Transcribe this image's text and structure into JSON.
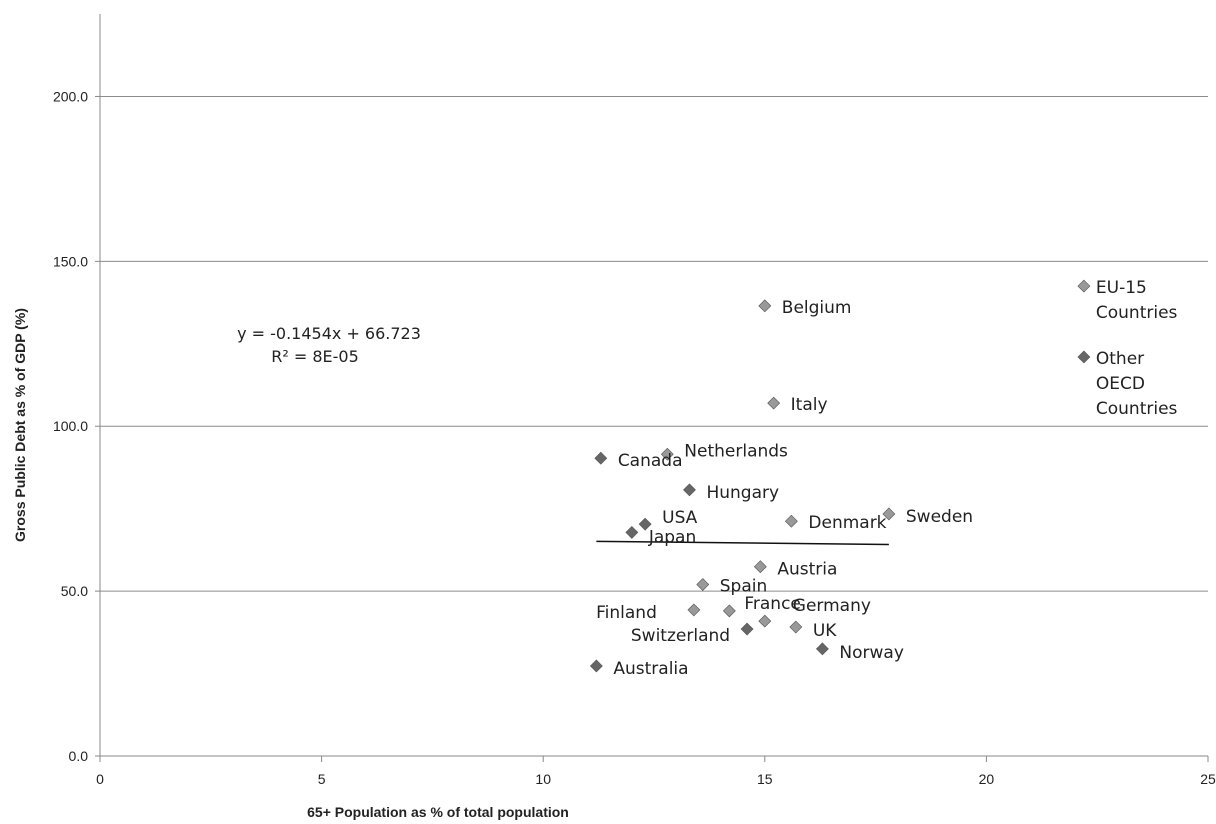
{
  "chart_data": {
    "type": "scatter",
    "title": "",
    "xlabel": "65+ Population as % of total population",
    "ylabel": "Gross Public Debt as % of GDP (%)",
    "xlim": [
      0,
      25
    ],
    "ylim": [
      0,
      225
    ],
    "x_ticks": [
      0,
      5,
      10,
      15,
      20,
      25
    ],
    "y_ticks": [
      0,
      50,
      100,
      150,
      200
    ],
    "x_tick_labels": [
      "0",
      "5",
      "10",
      "15",
      "20",
      "25"
    ],
    "y_tick_labels": [
      "0.0",
      "50.0",
      "100.0",
      "150.0",
      "200.0"
    ],
    "grid": "horizontal",
    "legend": "none",
    "marker_colors": {
      "eu15": "#999999",
      "other_oecd": "#666666"
    },
    "points": [
      {
        "label_lines": [
          "Belgium"
        ],
        "x": 15.0,
        "y": 136.5,
        "group": "eu15"
      },
      {
        "label_lines": [
          "Italy"
        ],
        "x": 15.2,
        "y": 107.0,
        "group": "eu15"
      },
      {
        "label_lines": [
          "Canada"
        ],
        "x": 11.3,
        "y": 90.3,
        "group": "other_oecd"
      },
      {
        "label_lines": [
          "Netherlands"
        ],
        "x": 12.8,
        "y": 91.5,
        "group": "eu15"
      },
      {
        "label_lines": [
          "Hungary"
        ],
        "x": 13.3,
        "y": 80.7,
        "group": "other_oecd"
      },
      {
        "label_lines": [
          "USA"
        ],
        "x": 12.3,
        "y": 70.3,
        "group": "other_oecd"
      },
      {
        "label_lines": [
          "Japan"
        ],
        "x": 12.0,
        "y": 67.8,
        "group": "other_oecd"
      },
      {
        "label_lines": [
          "Denmark"
        ],
        "x": 15.6,
        "y": 71.2,
        "group": "eu15"
      },
      {
        "label_lines": [
          "Sweden"
        ],
        "x": 17.8,
        "y": 73.4,
        "group": "eu15"
      },
      {
        "label_lines": [
          "Austria"
        ],
        "x": 14.9,
        "y": 57.4,
        "group": "eu15"
      },
      {
        "label_lines": [
          "Spain"
        ],
        "x": 13.6,
        "y": 52.0,
        "group": "eu15"
      },
      {
        "label_lines": [
          "Finland"
        ],
        "x": 13.4,
        "y": 44.3,
        "group": "eu15"
      },
      {
        "label_lines": [
          "France"
        ],
        "x": 14.2,
        "y": 44.0,
        "group": "eu15"
      },
      {
        "label_lines": [
          "Germany"
        ],
        "x": 15.0,
        "y": 40.9,
        "group": "eu15"
      },
      {
        "label_lines": [
          "Switzerland"
        ],
        "x": 14.6,
        "y": 38.5,
        "group": "other_oecd"
      },
      {
        "label_lines": [
          "UK"
        ],
        "x": 15.7,
        "y": 39.1,
        "group": "eu15"
      },
      {
        "label_lines": [
          "Norway"
        ],
        "x": 16.3,
        "y": 32.5,
        "group": "other_oecd"
      },
      {
        "label_lines": [
          "Australia"
        ],
        "x": 11.2,
        "y": 27.3,
        "group": "other_oecd"
      },
      {
        "label_lines": [
          "EU-15",
          "Countries"
        ],
        "x": 22.2,
        "y": 142.5,
        "group": "eu15"
      },
      {
        "label_lines": [
          "Other",
          "OECD",
          "Countries"
        ],
        "x": 22.2,
        "y": 121.0,
        "group": "other_oecd"
      }
    ],
    "trendline": {
      "x_range": [
        11.2,
        17.8
      ],
      "equation": "y = -0.1454x + 66.723",
      "r_squared": "R² = 8E-05"
    }
  }
}
